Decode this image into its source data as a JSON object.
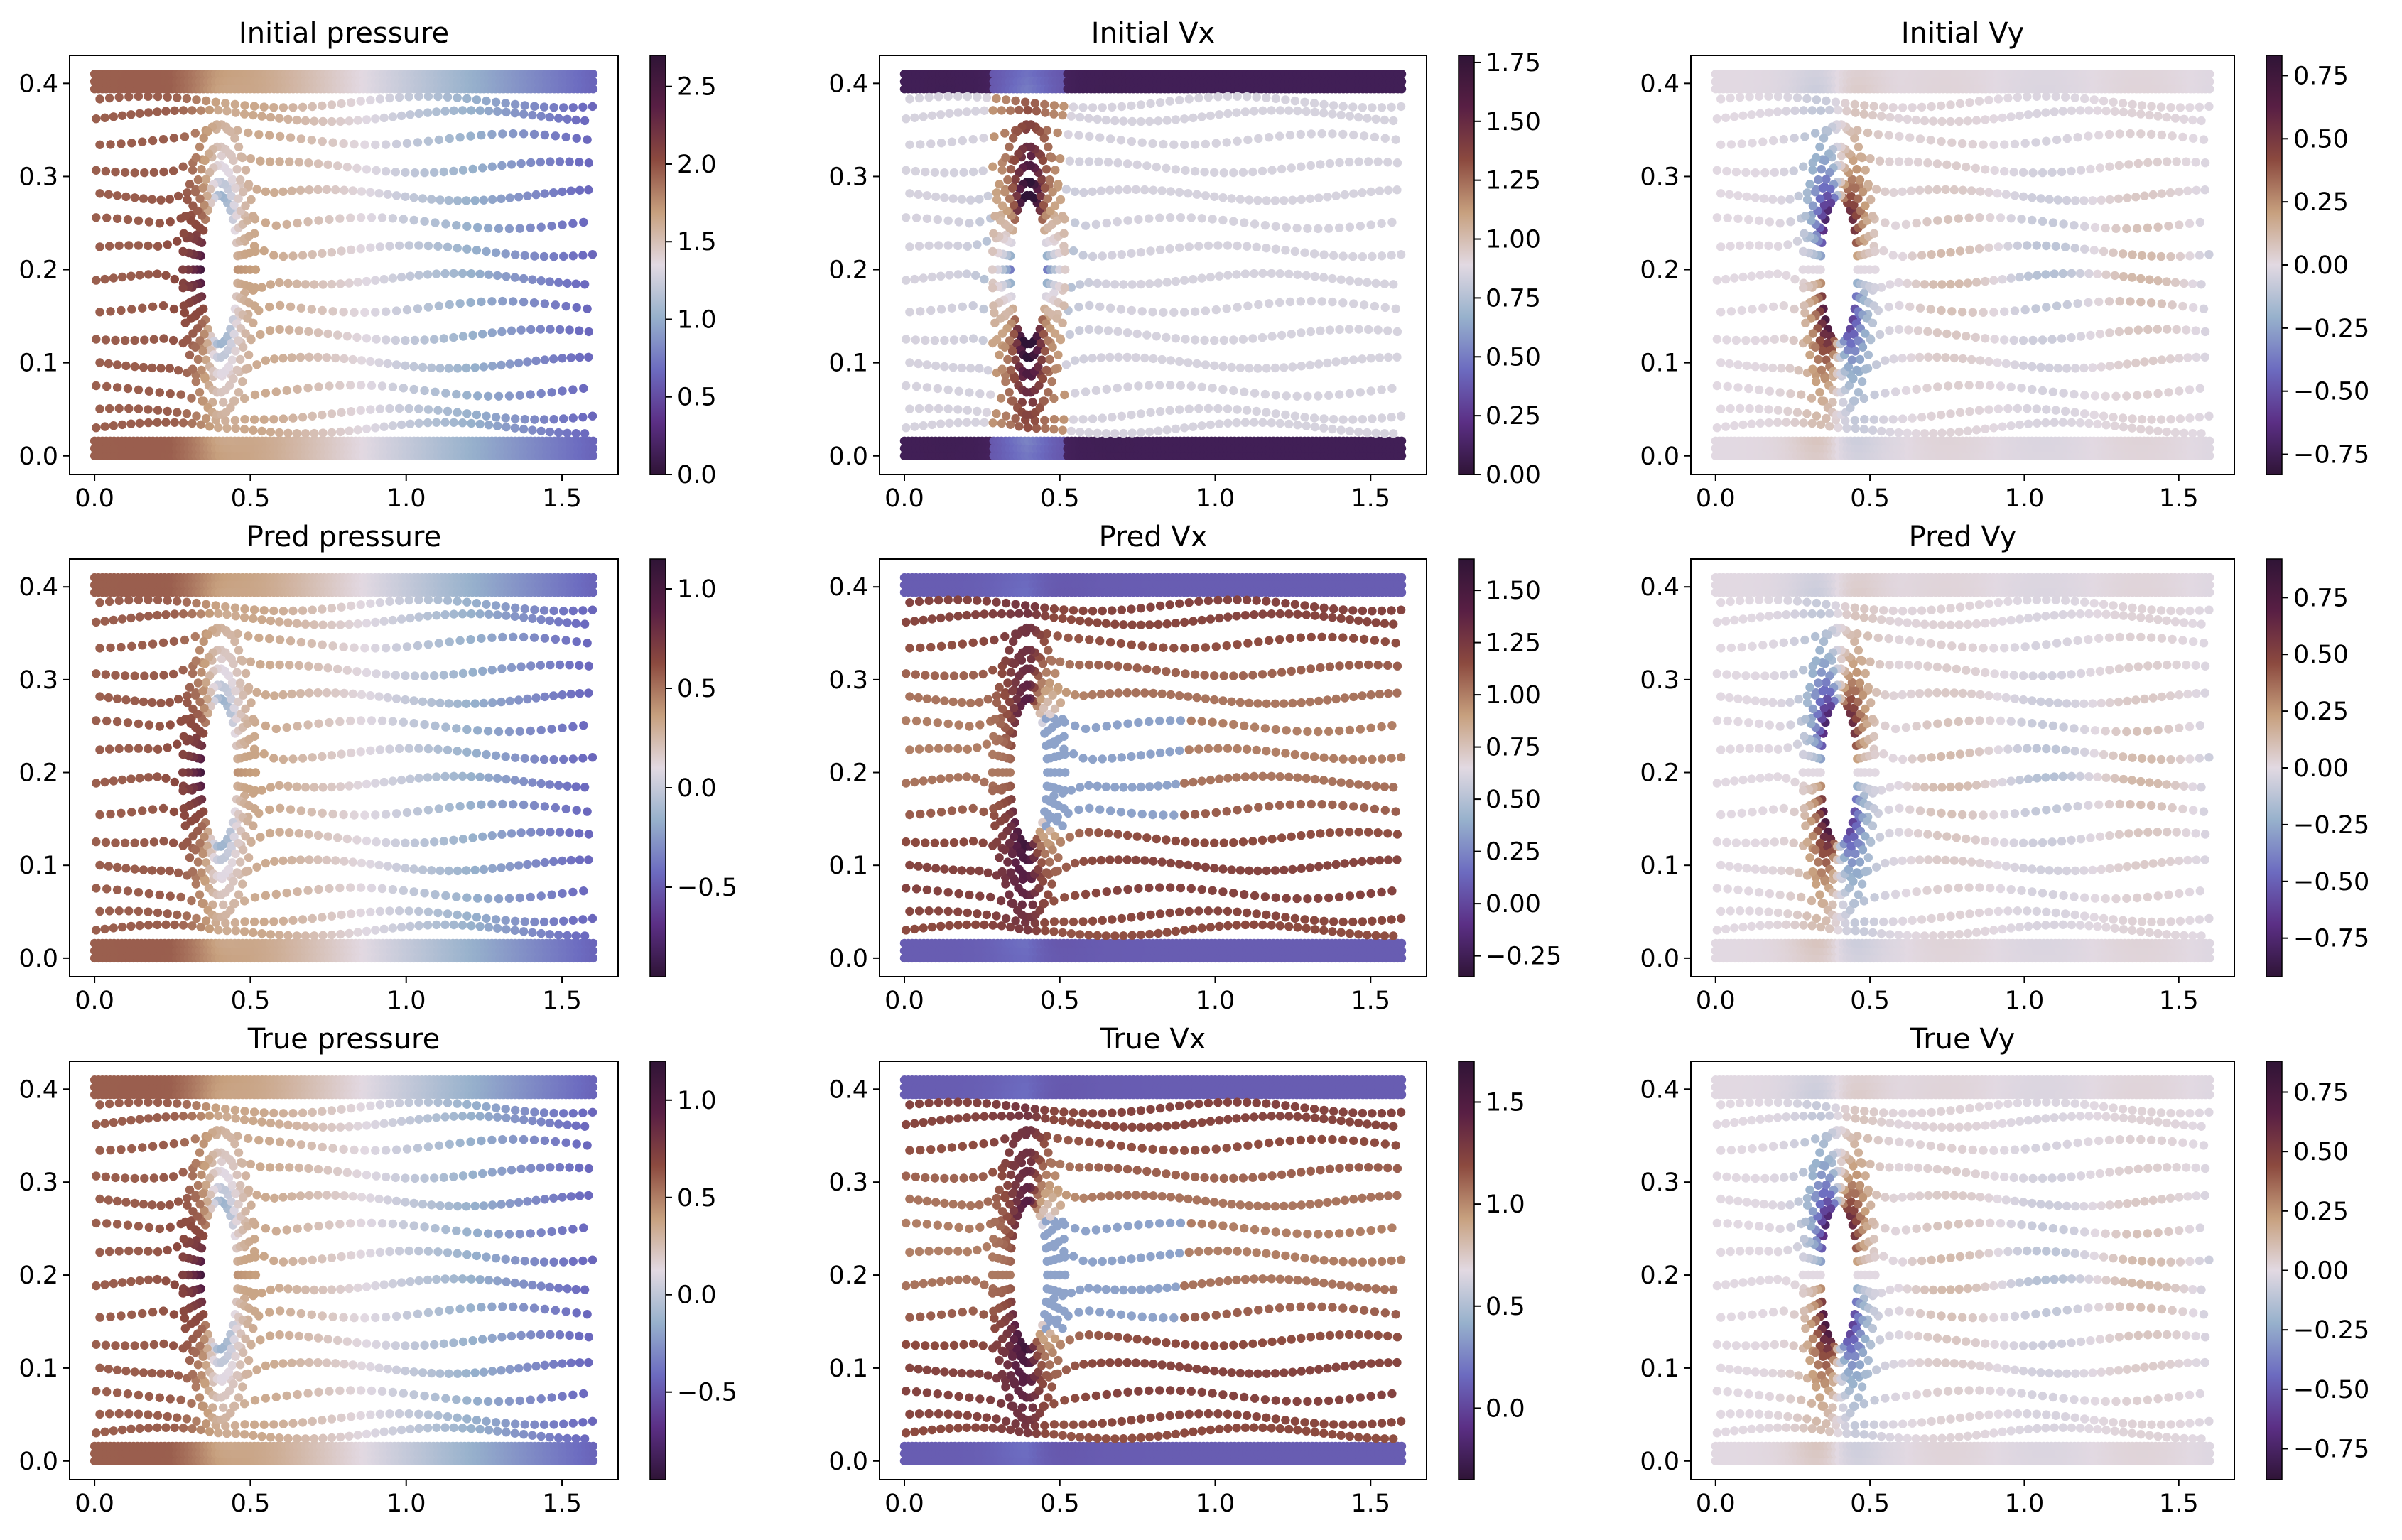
{
  "chart_data": [
    {
      "type": "scatter",
      "title": "Initial pressure",
      "field": "pressure",
      "xlim": [
        -0.08,
        1.68
      ],
      "ylim": [
        -0.02,
        0.43
      ],
      "x_ticks": [
        0.0,
        0.5,
        1.0,
        1.5
      ],
      "x_tick_labels": [
        "0.0",
        "0.5",
        "1.0",
        "1.5"
      ],
      "y_ticks": [
        0.0,
        0.1,
        0.2,
        0.3,
        0.4
      ],
      "y_tick_labels": [
        "0.0",
        "0.1",
        "0.2",
        "0.3",
        "0.4"
      ],
      "colorbar": {
        "min": 0.0,
        "max": 2.7,
        "ticks": [
          0.0,
          0.5,
          1.0,
          1.5,
          2.0,
          2.5
        ],
        "tick_labels": [
          "0.0",
          "0.5",
          "1.0",
          "1.5",
          "2.0",
          "2.5"
        ]
      }
    },
    {
      "type": "scatter",
      "title": "Initial Vx",
      "field": "vx_init",
      "xlim": [
        -0.08,
        1.68
      ],
      "ylim": [
        -0.02,
        0.43
      ],
      "x_ticks": [
        0.0,
        0.5,
        1.0,
        1.5
      ],
      "x_tick_labels": [
        "0.0",
        "0.5",
        "1.0",
        "1.5"
      ],
      "y_ticks": [
        0.0,
        0.1,
        0.2,
        0.3,
        0.4
      ],
      "y_tick_labels": [
        "0.0",
        "0.1",
        "0.2",
        "0.3",
        "0.4"
      ],
      "colorbar": {
        "min": 0.0,
        "max": 1.78,
        "ticks": [
          0.0,
          0.25,
          0.5,
          0.75,
          1.0,
          1.25,
          1.5,
          1.75
        ],
        "tick_labels": [
          "0.00",
          "0.25",
          "0.50",
          "0.75",
          "1.00",
          "1.25",
          "1.50",
          "1.75"
        ]
      }
    },
    {
      "type": "scatter",
      "title": "Initial Vy",
      "field": "vy",
      "xlim": [
        -0.08,
        1.68
      ],
      "ylim": [
        -0.02,
        0.43
      ],
      "x_ticks": [
        0.0,
        0.5,
        1.0,
        1.5
      ],
      "x_tick_labels": [
        "0.0",
        "0.5",
        "1.0",
        "1.5"
      ],
      "y_ticks": [
        0.0,
        0.1,
        0.2,
        0.3,
        0.4
      ],
      "y_tick_labels": [
        "0.0",
        "0.1",
        "0.2",
        "0.3",
        "0.4"
      ],
      "colorbar": {
        "min": -0.83,
        "max": 0.83,
        "ticks": [
          -0.75,
          -0.5,
          -0.25,
          0.0,
          0.25,
          0.5,
          0.75
        ],
        "tick_labels": [
          "−0.75",
          "−0.50",
          "−0.25",
          "0.00",
          "0.25",
          "0.50",
          "0.75"
        ]
      }
    },
    {
      "type": "scatter",
      "title": "Pred pressure",
      "field": "pressure",
      "xlim": [
        -0.08,
        1.68
      ],
      "ylim": [
        -0.02,
        0.43
      ],
      "x_ticks": [
        0.0,
        0.5,
        1.0,
        1.5
      ],
      "x_tick_labels": [
        "0.0",
        "0.5",
        "1.0",
        "1.5"
      ],
      "y_ticks": [
        0.0,
        0.1,
        0.2,
        0.3,
        0.4
      ],
      "y_tick_labels": [
        "0.0",
        "0.1",
        "0.2",
        "0.3",
        "0.4"
      ],
      "colorbar": {
        "min": -0.95,
        "max": 1.15,
        "ticks": [
          -0.5,
          0.0,
          0.5,
          1.0
        ],
        "tick_labels": [
          "−0.5",
          "0.0",
          "0.5",
          "1.0"
        ]
      }
    },
    {
      "type": "scatter",
      "title": "Pred Vx",
      "field": "vx",
      "xlim": [
        -0.08,
        1.68
      ],
      "ylim": [
        -0.02,
        0.43
      ],
      "x_ticks": [
        0.0,
        0.5,
        1.0,
        1.5
      ],
      "x_tick_labels": [
        "0.0",
        "0.5",
        "1.0",
        "1.5"
      ],
      "y_ticks": [
        0.0,
        0.1,
        0.2,
        0.3,
        0.4
      ],
      "y_tick_labels": [
        "0.0",
        "0.1",
        "0.2",
        "0.3",
        "0.4"
      ],
      "colorbar": {
        "min": -0.35,
        "max": 1.65,
        "ticks": [
          -0.25,
          0.0,
          0.25,
          0.5,
          0.75,
          1.0,
          1.25,
          1.5
        ],
        "tick_labels": [
          "−0.25",
          "0.00",
          "0.25",
          "0.50",
          "0.75",
          "1.00",
          "1.25",
          "1.50"
        ]
      }
    },
    {
      "type": "scatter",
      "title": "Pred Vy",
      "field": "vy",
      "xlim": [
        -0.08,
        1.68
      ],
      "ylim": [
        -0.02,
        0.43
      ],
      "x_ticks": [
        0.0,
        0.5,
        1.0,
        1.5
      ],
      "x_tick_labels": [
        "0.0",
        "0.5",
        "1.0",
        "1.5"
      ],
      "y_ticks": [
        0.0,
        0.1,
        0.2,
        0.3,
        0.4
      ],
      "y_tick_labels": [
        "0.0",
        "0.1",
        "0.2",
        "0.3",
        "0.4"
      ],
      "colorbar": {
        "min": -0.92,
        "max": 0.92,
        "ticks": [
          -0.75,
          -0.5,
          -0.25,
          0.0,
          0.25,
          0.5,
          0.75
        ],
        "tick_labels": [
          "−0.75",
          "−0.50",
          "−0.25",
          "0.00",
          "0.25",
          "0.50",
          "0.75"
        ]
      }
    },
    {
      "type": "scatter",
      "title": "True pressure",
      "field": "pressure",
      "xlim": [
        -0.08,
        1.68
      ],
      "ylim": [
        -0.02,
        0.43
      ],
      "x_ticks": [
        0.0,
        0.5,
        1.0,
        1.5
      ],
      "x_tick_labels": [
        "0.0",
        "0.5",
        "1.0",
        "1.5"
      ],
      "y_ticks": [
        0.0,
        0.1,
        0.2,
        0.3,
        0.4
      ],
      "y_tick_labels": [
        "0.0",
        "0.1",
        "0.2",
        "0.3",
        "0.4"
      ],
      "colorbar": {
        "min": -0.95,
        "max": 1.2,
        "ticks": [
          -0.5,
          0.0,
          0.5,
          1.0
        ],
        "tick_labels": [
          "−0.5",
          "0.0",
          "0.5",
          "1.0"
        ]
      }
    },
    {
      "type": "scatter",
      "title": "True Vx",
      "field": "vx",
      "xlim": [
        -0.08,
        1.68
      ],
      "ylim": [
        -0.02,
        0.43
      ],
      "x_ticks": [
        0.0,
        0.5,
        1.0,
        1.5
      ],
      "x_tick_labels": [
        "0.0",
        "0.5",
        "1.0",
        "1.5"
      ],
      "y_ticks": [
        0.0,
        0.1,
        0.2,
        0.3,
        0.4
      ],
      "y_tick_labels": [
        "0.0",
        "0.1",
        "0.2",
        "0.3",
        "0.4"
      ],
      "colorbar": {
        "min": -0.35,
        "max": 1.7,
        "ticks": [
          0.0,
          0.5,
          1.0,
          1.5
        ],
        "tick_labels": [
          "0.0",
          "0.5",
          "1.0",
          "1.5"
        ]
      }
    },
    {
      "type": "scatter",
      "title": "True Vy",
      "field": "vy",
      "xlim": [
        -0.08,
        1.68
      ],
      "ylim": [
        -0.02,
        0.43
      ],
      "x_ticks": [
        0.0,
        0.5,
        1.0,
        1.5
      ],
      "x_tick_labels": [
        "0.0",
        "0.5",
        "1.0",
        "1.5"
      ],
      "y_ticks": [
        0.0,
        0.1,
        0.2,
        0.3,
        0.4
      ],
      "y_tick_labels": [
        "0.0",
        "0.1",
        "0.2",
        "0.3",
        "0.4"
      ],
      "colorbar": {
        "min": -0.88,
        "max": 0.88,
        "ticks": [
          -0.75,
          -0.5,
          -0.25,
          0.0,
          0.25,
          0.5,
          0.75
        ],
        "tick_labels": [
          "−0.75",
          "−0.50",
          "−0.25",
          "0.00",
          "0.25",
          "0.50",
          "0.75"
        ]
      }
    }
  ],
  "domain_geometry": {
    "channel_x": [
      0.0,
      1.6
    ],
    "channel_y": [
      0.0,
      0.41
    ],
    "obstacle": {
      "shape": "ellipse",
      "center": [
        0.4,
        0.2
      ],
      "radius_x": 0.06,
      "radius_y": 0.08
    }
  },
  "colormap": {
    "name": "twilight_shifted",
    "stops": [
      "#2f1436",
      "#5b2f85",
      "#6c6bc0",
      "#97b1cc",
      "#e2d9e2",
      "#c7a07e",
      "#8c4a3f",
      "#591f44",
      "#2f1436"
    ]
  }
}
